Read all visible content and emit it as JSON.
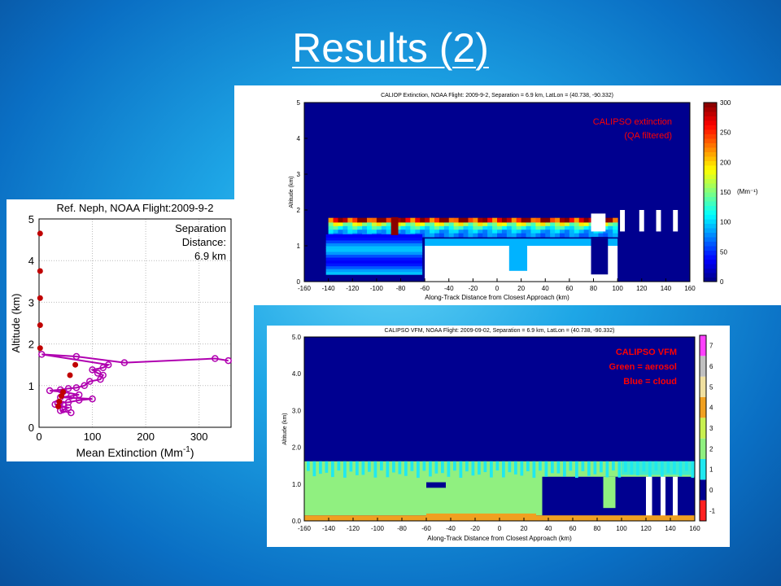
{
  "slide": {
    "title": "Results (2)"
  },
  "chart_data": [
    {
      "type": "heatmap",
      "title": "CALIOP Extinction, NOAA Flight: 2009-9-2, Separation = 6.9 km, LatLon = (40.738, -90.332)",
      "xlabel": "Along-Track Distance from Closest Approach (km)",
      "ylabel": "Altitude (km)",
      "xlim": [
        -160,
        160
      ],
      "ylim": [
        0,
        5
      ],
      "xticks": [
        -160,
        -140,
        -120,
        -100,
        -80,
        -60,
        -40,
        -20,
        0,
        20,
        40,
        60,
        80,
        100,
        120,
        140,
        160
      ],
      "yticks": [
        0,
        1,
        2,
        3,
        4,
        5
      ],
      "colorbar": {
        "ticks": [
          0,
          50,
          100,
          150,
          200,
          250,
          300
        ],
        "label": "(Mm⁻¹)",
        "range": [
          0,
          300
        ]
      },
      "annotation": [
        "CALIPSO extinction",
        "(QA filtered)"
      ],
      "annotation_color": "#ff0000"
    },
    {
      "type": "line",
      "title": "Ref. Neph, NOAA Flight:2009-9-2",
      "xlabel": "Mean Extinction (Mm",
      "xlabel_sup": "-1",
      "xlabel_end": ")",
      "ylabel": "Altitude (km)",
      "xlim": [
        0,
        360
      ],
      "ylim": [
        0,
        5
      ],
      "xticks": [
        0,
        100,
        200,
        300
      ],
      "yticks": [
        0,
        1,
        2,
        3,
        4,
        5
      ],
      "annotation": [
        "Separation",
        "Distance:",
        "6.9 km"
      ],
      "series": [
        {
          "marker": "circle-open",
          "color": "#b000b0",
          "points": [
            [
              355,
              1.6
            ],
            [
              330,
              1.65
            ],
            [
              160,
              1.55
            ],
            [
              70,
              1.7
            ],
            [
              5,
              1.75
            ],
            [
              130,
              1.5
            ],
            [
              120,
              1.43
            ],
            [
              100,
              1.38
            ],
            [
              110,
              1.3
            ],
            [
              120,
              1.25
            ],
            [
              115,
              1.15
            ],
            [
              95,
              1.1
            ],
            [
              85,
              1.0
            ],
            [
              70,
              0.95
            ],
            [
              55,
              0.93
            ],
            [
              40,
              0.9
            ],
            [
              20,
              0.88
            ],
            [
              45,
              0.85
            ],
            [
              75,
              0.78
            ],
            [
              60,
              0.75
            ],
            [
              40,
              0.72
            ],
            [
              100,
              0.68
            ],
            [
              75,
              0.65
            ],
            [
              55,
              0.6
            ],
            [
              35,
              0.58
            ],
            [
              45,
              0.55
            ],
            [
              30,
              0.55
            ],
            [
              55,
              0.47
            ],
            [
              45,
              0.42
            ],
            [
              40,
              0.4
            ],
            [
              60,
              0.35
            ]
          ]
        },
        {
          "marker": "dot",
          "color": "#c00000",
          "points": [
            [
              2,
              4.65
            ],
            [
              2,
              3.75
            ],
            [
              2,
              3.1
            ],
            [
              2,
              2.45
            ],
            [
              2,
              1.9
            ],
            [
              68,
              1.5
            ],
            [
              58,
              1.25
            ],
            [
              45,
              0.85
            ],
            [
              42,
              0.75
            ],
            [
              38,
              0.62
            ],
            [
              36,
              0.5
            ]
          ]
        }
      ]
    },
    {
      "type": "heatmap",
      "title": "CALIPSO VFM, NOAA Flight: 2009-09-02, Separation = 6.9 km, LatLon = (40.738, -90.332)",
      "xlabel": "Along-Track Distance from Closest Approach (km)",
      "ylabel": "Altitude (km)",
      "xlim": [
        -160,
        160
      ],
      "ylim": [
        0,
        5
      ],
      "xticks": [
        -160,
        -140,
        -120,
        -100,
        -80,
        -60,
        -40,
        -20,
        0,
        20,
        40,
        60,
        80,
        100,
        120,
        140,
        160
      ],
      "yticks": [
        "0.0",
        "1.0",
        "2.0",
        "3.0",
        "4.0",
        "5.0"
      ],
      "colorbar": {
        "ticks": [
          -1,
          0,
          1,
          2,
          3,
          4,
          5,
          6,
          7
        ],
        "range": [
          -1.5,
          7.5
        ]
      },
      "annotation": [
        "CALIPSO VFM",
        "Green = aerosol",
        "Blue = cloud"
      ],
      "annotation_color": "#ff0000"
    }
  ]
}
